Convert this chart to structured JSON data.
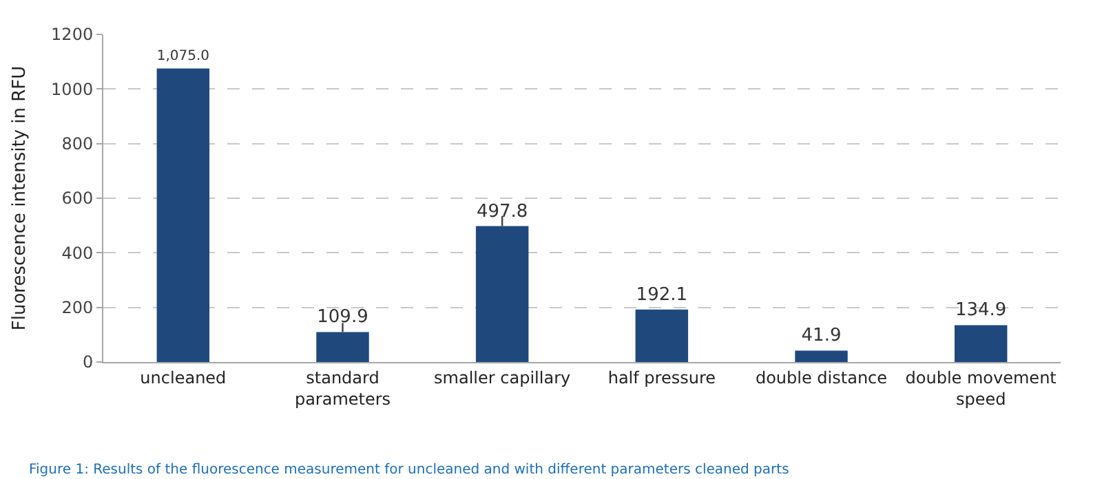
{
  "chart_data": {
    "type": "bar",
    "ylabel": "Fluorescence intensity in RFU",
    "categories": [
      "uncleaned",
      "standard parameters",
      "smaller capillary",
      "half pressure",
      "double distance",
      "double movement speed"
    ],
    "values": [
      1075.0,
      109.9,
      497.8,
      192.1,
      41.9,
      134.9
    ],
    "value_labels": [
      "1,075.0",
      "109.9",
      "497.8",
      "192.1",
      "41.9",
      "134.9"
    ],
    "errors": [
      null,
      [
        109.9,
        143
      ],
      [
        497.8,
        535
      ],
      null,
      null,
      null
    ],
    "color": "#1f497d",
    "ylim": [
      0,
      1200
    ],
    "yticks": [
      0,
      200,
      400,
      600,
      800,
      1000,
      1200
    ],
    "grid": "y",
    "legend": false,
    "annotations": [
      "Figure 1: Results of the fluorescence measurement for uncleaned and with different parameters cleaned parts"
    ]
  }
}
